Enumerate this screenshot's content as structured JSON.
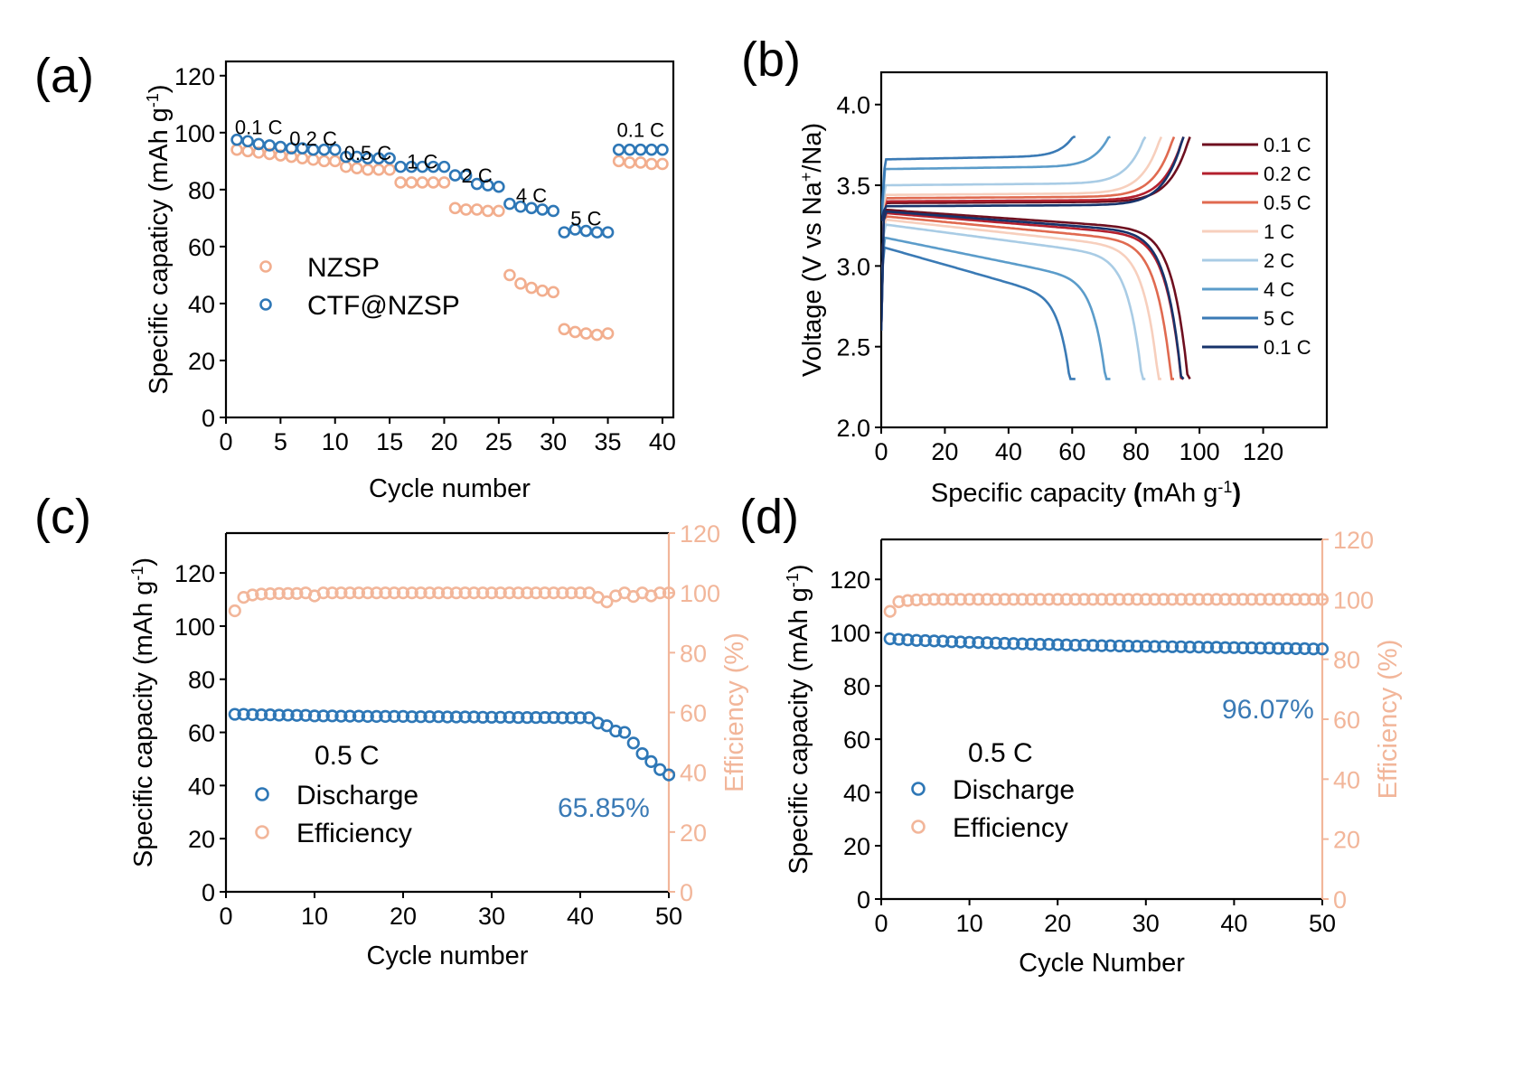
{
  "colors": {
    "nzsp": "#f2ae8e",
    "ctf": "#2e77b6",
    "efficiency": "#f2b69a",
    "discharge": "#2e77b6",
    "pct_text": "#3a7ab5"
  },
  "chart_data": [
    {
      "panel": "(a)",
      "type": "scatter",
      "xlabel": "Cycle number",
      "ylabel": "Specific capaticy (mAh g",
      "ylabel_sup": "-1",
      "ylabel_close": ")",
      "xlim": [
        0,
        41
      ],
      "ylim": [
        0,
        125
      ],
      "xticks": [
        0,
        5,
        10,
        15,
        20,
        25,
        30,
        35,
        40
      ],
      "yticks": [
        0,
        20,
        40,
        60,
        80,
        100,
        120
      ],
      "legend_position": "center-left",
      "rate_annotations": [
        {
          "text": "0.1 C",
          "x": 3,
          "y": 102
        },
        {
          "text": "0.2 C",
          "x": 8,
          "y": 98
        },
        {
          "text": "0.5 C",
          "x": 13,
          "y": 93
        },
        {
          "text": "1 C",
          "x": 18,
          "y": 90
        },
        {
          "text": "2 C",
          "x": 23,
          "y": 85
        },
        {
          "text": "4 C",
          "x": 28,
          "y": 78
        },
        {
          "text": "5 C",
          "x": 33,
          "y": 70
        },
        {
          "text": "0.1 C",
          "x": 38,
          "y": 101
        }
      ],
      "series": [
        {
          "name": "NZSP",
          "x": [
            1,
            2,
            3,
            4,
            5,
            6,
            7,
            8,
            9,
            10,
            11,
            12,
            13,
            14,
            15,
            16,
            17,
            18,
            19,
            20,
            21,
            22,
            23,
            24,
            25,
            26,
            27,
            28,
            29,
            30,
            31,
            32,
            33,
            34,
            35,
            36,
            37,
            38,
            39,
            40
          ],
          "values": [
            94,
            93.5,
            93,
            92.5,
            92,
            91.5,
            91,
            90.5,
            90,
            90,
            88,
            87.5,
            87,
            87,
            87,
            82.5,
            82.5,
            82.5,
            82.5,
            82.5,
            73.5,
            73,
            73,
            72.5,
            72.5,
            50,
            47,
            45.5,
            44.5,
            44,
            31,
            30,
            29.5,
            29,
            29.5,
            90,
            89.5,
            89.5,
            89,
            89
          ]
        },
        {
          "name": "CTF@NZSP",
          "x": [
            1,
            2,
            3,
            4,
            5,
            6,
            7,
            8,
            9,
            10,
            11,
            12,
            13,
            14,
            15,
            16,
            17,
            18,
            19,
            20,
            21,
            22,
            23,
            24,
            25,
            26,
            27,
            28,
            29,
            30,
            31,
            32,
            33,
            34,
            35,
            36,
            37,
            38,
            39,
            40
          ],
          "values": [
            97.5,
            97,
            96,
            95.5,
            95,
            94.5,
            94.5,
            94,
            94,
            94,
            91.5,
            91.5,
            91,
            91,
            91,
            88,
            88,
            88,
            88,
            88,
            85,
            85,
            82,
            81.5,
            81,
            75,
            74,
            73.5,
            73,
            72.5,
            65,
            66,
            65.5,
            65,
            65,
            94,
            94,
            94,
            94,
            94
          ]
        }
      ]
    },
    {
      "panel": "(b)",
      "type": "line",
      "xlabel": "Specific capacity ",
      "xlabel_paren_open": "(",
      "xlabel_unit": "mAh g",
      "xlabel_sup": "-1",
      "xlabel_paren_close": ")",
      "ylabel": "Voltage (V vs Na",
      "ylabel_sup": "+",
      "ylabel_close": "/Na)",
      "xlim": [
        0,
        140
      ],
      "ylim": [
        2.0,
        4.2
      ],
      "xticks": [
        0,
        20,
        40,
        60,
        80,
        100,
        120
      ],
      "yticks": [
        2.0,
        2.5,
        3.0,
        3.5,
        4.0
      ],
      "legend_position": "right",
      "series": [
        {
          "name": "0.1 C",
          "color": "#6e0f1f",
          "capacity": 97,
          "charge_v": 3.39,
          "discharge_v": 3.35
        },
        {
          "name": "0.2 C",
          "color": "#b3202e",
          "capacity": 95,
          "charge_v": 3.4,
          "discharge_v": 3.33
        },
        {
          "name": "0.5 C",
          "color": "#e06a50",
          "capacity": 92,
          "charge_v": 3.42,
          "discharge_v": 3.31
        },
        {
          "name": "1 C",
          "color": "#f7cfbd",
          "capacity": 88,
          "charge_v": 3.44,
          "discharge_v": 3.29
        },
        {
          "name": "2 C",
          "color": "#a9cce5",
          "capacity": 83,
          "charge_v": 3.5,
          "discharge_v": 3.26
        },
        {
          "name": "4 C",
          "color": "#5b9cca",
          "capacity": 72,
          "charge_v": 3.6,
          "discharge_v": 3.18
        },
        {
          "name": "5 C",
          "color": "#3a7ab5",
          "capacity": 61,
          "charge_v": 3.66,
          "discharge_v": 3.12
        },
        {
          "name": "0.1 C",
          "color": "#17336b",
          "capacity": 95,
          "charge_v": 3.37,
          "discharge_v": 3.34
        }
      ]
    },
    {
      "panel": "(c)",
      "type": "scatter",
      "xlabel": "Cycle number",
      "ylabel": "Specific capacity (mAh g",
      "ylabel_sup": "-1",
      "ylabel_close": ")",
      "y2label": "Efficiency (%)",
      "xlim": [
        0,
        50
      ],
      "ylim": [
        0,
        135
      ],
      "y2lim": [
        0,
        120
      ],
      "xticks": [
        0,
        10,
        20,
        30,
        40,
        50
      ],
      "yticks": [
        0,
        20,
        40,
        60,
        80,
        100,
        120
      ],
      "y2ticks": [
        0,
        20,
        40,
        60,
        80,
        100,
        120
      ],
      "rate_text": "0.5 C",
      "retention_text": "65.85%",
      "legend_position": "lower-left",
      "series": [
        {
          "name": "Discharge",
          "axis": "left",
          "x": [
            1,
            2,
            3,
            4,
            5,
            6,
            7,
            8,
            9,
            10,
            11,
            12,
            13,
            14,
            15,
            16,
            17,
            18,
            19,
            20,
            21,
            22,
            23,
            24,
            25,
            26,
            27,
            28,
            29,
            30,
            31,
            32,
            33,
            34,
            35,
            36,
            37,
            38,
            39,
            40,
            41,
            42,
            43,
            44,
            45,
            46,
            47,
            48,
            49,
            50
          ],
          "values": [
            66.8,
            66.8,
            66.7,
            66.6,
            66.6,
            66.5,
            66.5,
            66.4,
            66.4,
            66.2,
            66.2,
            66.2,
            66.1,
            66.1,
            66.1,
            66.0,
            66.0,
            66.0,
            66.0,
            66.0,
            65.9,
            65.9,
            65.9,
            65.9,
            65.8,
            65.8,
            65.8,
            65.8,
            65.7,
            65.7,
            65.7,
            65.7,
            65.6,
            65.6,
            65.6,
            65.6,
            65.6,
            65.5,
            65.5,
            65.5,
            65.5,
            63.5,
            62.5,
            60.5,
            60,
            56,
            52,
            49,
            46,
            44
          ]
        },
        {
          "name": "Efficiency",
          "axis": "right",
          "x": [
            1,
            2,
            3,
            4,
            5,
            6,
            7,
            8,
            9,
            10,
            11,
            12,
            13,
            14,
            15,
            16,
            17,
            18,
            19,
            20,
            21,
            22,
            23,
            24,
            25,
            26,
            27,
            28,
            29,
            30,
            31,
            32,
            33,
            34,
            35,
            36,
            37,
            38,
            39,
            40,
            41,
            42,
            43,
            44,
            45,
            46,
            47,
            48,
            49,
            50
          ],
          "values": [
            94,
            98.5,
            99.3,
            99.6,
            99.7,
            99.8,
            99.8,
            99.8,
            100,
            99,
            100,
            100,
            100,
            100,
            100,
            100,
            100,
            100,
            100,
            100,
            100,
            100,
            100,
            100,
            100,
            100,
            100,
            100,
            100,
            100,
            100,
            100,
            100,
            100,
            100,
            100,
            100,
            100,
            100,
            100,
            100,
            98.5,
            97,
            99,
            100,
            98.8,
            100,
            99,
            100,
            100
          ]
        }
      ]
    },
    {
      "panel": "(d)",
      "type": "scatter",
      "xlabel": "Cycle Number",
      "ylabel": "Specific capacity (mAh g",
      "ylabel_sup": "-1",
      "ylabel_close": ")",
      "y2label": "Efficiency (%)",
      "xlim": [
        0,
        50
      ],
      "ylim": [
        0,
        135
      ],
      "y2lim": [
        0,
        120
      ],
      "xticks": [
        0,
        10,
        20,
        30,
        40,
        50
      ],
      "yticks": [
        0,
        20,
        40,
        60,
        80,
        100,
        120
      ],
      "y2ticks": [
        0,
        20,
        40,
        60,
        80,
        100,
        120
      ],
      "rate_text": "0.5 C",
      "retention_text": "96.07%",
      "legend_position": "lower-left",
      "series": [
        {
          "name": "Discharge",
          "axis": "left",
          "x": [
            1,
            2,
            3,
            4,
            5,
            6,
            7,
            8,
            9,
            10,
            11,
            12,
            13,
            14,
            15,
            16,
            17,
            18,
            19,
            20,
            21,
            22,
            23,
            24,
            25,
            26,
            27,
            28,
            29,
            30,
            31,
            32,
            33,
            34,
            35,
            36,
            37,
            38,
            39,
            40,
            41,
            42,
            43,
            44,
            45,
            46,
            47,
            48,
            49,
            50
          ],
          "values": [
            97.7,
            97.5,
            97.3,
            97.1,
            97.0,
            96.9,
            96.8,
            96.6,
            96.5,
            96.4,
            96.3,
            96.2,
            96.1,
            96.0,
            95.9,
            95.8,
            95.7,
            95.6,
            95.6,
            95.5,
            95.4,
            95.3,
            95.3,
            95.2,
            95.1,
            95.1,
            95.0,
            95.0,
            94.9,
            94.9,
            94.8,
            94.8,
            94.7,
            94.7,
            94.6,
            94.6,
            94.5,
            94.5,
            94.4,
            94.4,
            94.3,
            94.3,
            94.2,
            94.2,
            94.1,
            94.1,
            94.0,
            94.0,
            93.9,
            93.9
          ]
        },
        {
          "name": "Efficiency",
          "axis": "right",
          "x": [
            1,
            2,
            3,
            4,
            5,
            6,
            7,
            8,
            9,
            10,
            11,
            12,
            13,
            14,
            15,
            16,
            17,
            18,
            19,
            20,
            21,
            22,
            23,
            24,
            25,
            26,
            27,
            28,
            29,
            30,
            31,
            32,
            33,
            34,
            35,
            36,
            37,
            38,
            39,
            40,
            41,
            42,
            43,
            44,
            45,
            46,
            47,
            48,
            49,
            50
          ],
          "values": [
            96,
            99.2,
            99.6,
            99.8,
            99.9,
            100,
            100,
            100,
            100,
            100,
            100,
            100,
            100,
            100,
            100,
            100,
            100,
            100,
            100,
            100,
            100,
            100,
            100,
            100,
            100,
            100,
            100,
            100,
            100,
            100,
            100,
            100,
            100,
            100,
            100,
            100,
            100,
            100,
            100,
            100,
            100,
            100,
            100,
            100,
            100,
            100,
            100,
            100,
            100,
            100
          ]
        }
      ]
    }
  ]
}
